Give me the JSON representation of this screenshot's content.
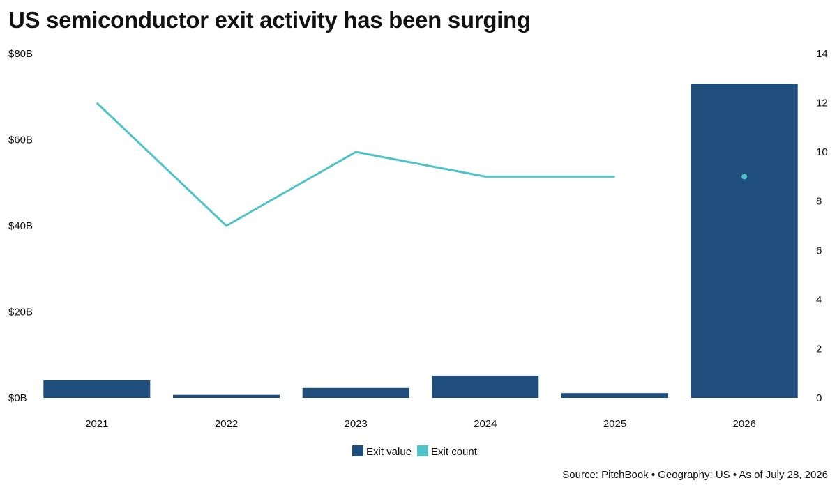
{
  "source_note": "Source: PitchBook • Geography: US • As of July 28, 2026",
  "colors": {
    "exit_value": "#1f4e7d",
    "exit_count": "#4fc3c7",
    "text": "#111111",
    "background": "#ffffff"
  },
  "chart_data": {
    "type": "bar",
    "title": "US semiconductor exit activity has been surging",
    "subtitle": "",
    "xlabel": "",
    "ylabel": "",
    "y2label": "",
    "grid": false,
    "legend_position": "bottom-center",
    "categories": [
      "2021",
      "2022",
      "2023",
      "2024",
      "2025",
      "2026"
    ],
    "y_axis": {
      "range": [
        0,
        80
      ],
      "ticks": [
        0,
        20,
        40,
        60,
        80
      ],
      "tick_labels": [
        "$0B",
        "$20B",
        "$40B",
        "$60B",
        "$80B"
      ]
    },
    "y2_axis": {
      "range": [
        0,
        14
      ],
      "ticks": [
        0,
        2,
        4,
        6,
        8,
        10,
        12,
        14
      ],
      "tick_labels": [
        "0",
        "2",
        "4",
        "6",
        "8",
        "10",
        "12",
        "14"
      ]
    },
    "series": [
      {
        "name": "Exit value",
        "type": "bar",
        "axis": "left",
        "unit": "$B",
        "values": [
          4.1,
          0.7,
          2.3,
          5.2,
          1.1,
          73
        ]
      },
      {
        "name": "Exit count",
        "type": "line",
        "axis": "right",
        "values": [
          12,
          7,
          10,
          9,
          9,
          9
        ]
      }
    ]
  }
}
